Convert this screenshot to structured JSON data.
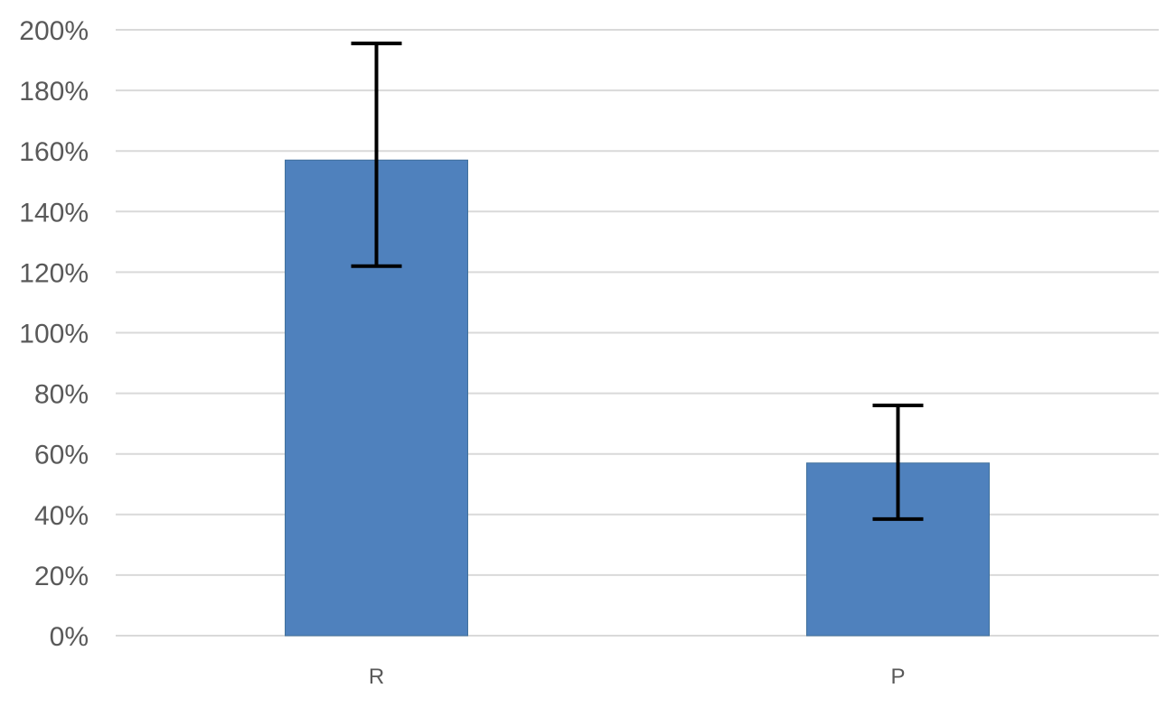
{
  "chart_data": {
    "type": "bar",
    "title": "",
    "xlabel": "",
    "ylabel": "",
    "categories": [
      "R",
      "P"
    ],
    "series": [
      {
        "values": [
          1.57,
          0.57
        ],
        "error_high": [
          1.955,
          0.76
        ],
        "error_low": [
          1.22,
          0.385
        ],
        "color": "#4f81bd"
      }
    ],
    "ylim": [
      0,
      2.0
    ],
    "yticks": [
      0,
      0.2,
      0.4,
      0.6,
      0.8,
      1.0,
      1.2,
      1.4,
      1.6,
      1.8,
      2.0
    ],
    "ytick_labels": [
      "0%",
      "20%",
      "40%",
      "60%",
      "80%",
      "100%",
      "120%",
      "140%",
      "160%",
      "180%",
      "200%"
    ],
    "y_format": "percent",
    "grid": true,
    "legend": "none"
  }
}
